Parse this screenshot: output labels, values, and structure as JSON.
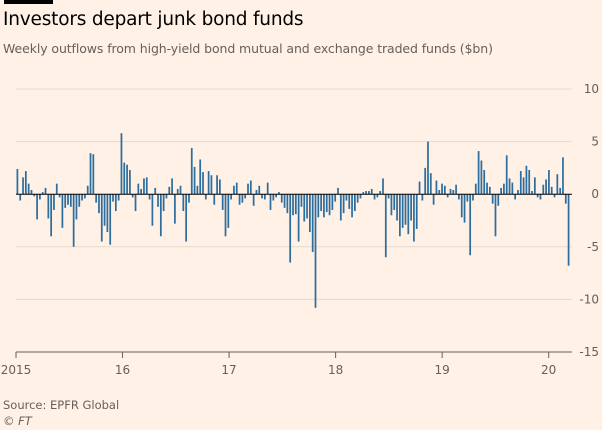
{
  "header": {
    "title": "Investors depart junk bond funds",
    "subtitle": "Weekly outflows from high-yield bond mutual and exchange traded funds ($bn)"
  },
  "footer": {
    "source": "Source: EPFR Global",
    "credit": "© FT"
  },
  "colors": {
    "background": "#fff1e5",
    "bar": "#2e6e9e",
    "grid": "#e6d9ce",
    "zero_line": "#000000",
    "text": "#66605c"
  },
  "chart_data": {
    "type": "bar",
    "title": "Investors depart junk bond funds",
    "subtitle": "Weekly outflows from high-yield bond mutual and exchange traded funds ($bn)",
    "xlabel": "",
    "ylabel": "",
    "ylim": [
      -15,
      10
    ],
    "yticks": [
      10,
      5,
      0,
      -5,
      -10,
      -15
    ],
    "xlim": [
      2015.0,
      2020.2
    ],
    "xticks": [
      {
        "value": 2015,
        "label": "2015"
      },
      {
        "value": 2016,
        "label": "16"
      },
      {
        "value": 2017,
        "label": "17"
      },
      {
        "value": 2018,
        "label": "18"
      },
      {
        "value": 2019,
        "label": "19"
      },
      {
        "value": 2020,
        "label": "20"
      }
    ],
    "grid": true,
    "y_axis_position": "right",
    "series": [
      {
        "values": [
          2.4,
          -0.6,
          1.6,
          2.2,
          1.0,
          0.4,
          -0.2,
          -2.4,
          -0.5,
          0.2,
          0.6,
          -2.3,
          -4.0,
          -1.5,
          1.0,
          -0.3,
          -3.2,
          -1.3,
          -1.0,
          -1.2,
          -5.0,
          -2.4,
          -1.2,
          -0.6,
          -0.4,
          0.8,
          3.9,
          3.8,
          -0.8,
          -1.8,
          -4.5,
          -3.0,
          -3.6,
          -4.8,
          -0.7,
          -1.6,
          -0.6,
          5.8,
          3.0,
          2.8,
          2.3,
          -0.3,
          -1.6,
          1.0,
          0.5,
          1.5,
          1.6,
          -0.5,
          -3.0,
          0.6,
          -1.2,
          -4.0,
          -1.6,
          -0.4,
          0.7,
          1.5,
          -2.8,
          0.5,
          0.8,
          -1.6,
          -4.5,
          -0.8,
          4.4,
          2.6,
          0.8,
          3.3,
          2.1,
          -0.5,
          2.2,
          1.8,
          -1.0,
          1.8,
          1.4,
          -1.5,
          -4.0,
          -3.2,
          -0.5,
          0.8,
          1.1,
          -1.0,
          -0.8,
          -0.4,
          1.0,
          1.3,
          -1.1,
          0.4,
          0.8,
          -0.4,
          -0.5,
          1.1,
          -1.5,
          -0.6,
          -0.3,
          0.2,
          -0.8,
          -1.3,
          -1.8,
          -6.5,
          -2.0,
          -1.9,
          -4.5,
          -1.2,
          -2.6,
          -2.3,
          -3.6,
          -5.5,
          -10.8,
          -2.2,
          -1.6,
          -2.2,
          -1.7,
          -2.0,
          -1.5,
          -0.7,
          0.6,
          -2.5,
          -1.8,
          -0.6,
          -1.4,
          -2.2,
          -1.6,
          -0.8,
          -0.4,
          0.2,
          0.3,
          0.3,
          0.5,
          -0.5,
          -0.3,
          0.3,
          1.5,
          -6.0,
          -0.4,
          -2.0,
          -1.5,
          -2.5,
          -4.0,
          -3.2,
          -2.9,
          -3.8,
          -2.5,
          -4.5,
          -3.3,
          1.2,
          -0.6,
          2.5,
          5.0,
          2.0,
          -1.0,
          1.3,
          0.4,
          1.0,
          0.8,
          -0.3,
          0.5,
          0.4,
          0.9,
          -0.5,
          -2.2,
          -2.7,
          -0.7,
          -5.8,
          -0.6,
          1.0,
          4.1,
          3.2,
          2.3,
          1.1,
          0.7,
          -0.9,
          -4.0,
          -1.1,
          0.6,
          1.0,
          3.7,
          1.5,
          1.1,
          -0.5,
          0.4,
          2.2,
          1.6,
          2.7,
          2.3,
          0.3,
          1.6,
          -0.3,
          -0.5,
          0.9,
          1.4,
          2.3,
          0.7,
          -0.3,
          1.9,
          0.6,
          3.5,
          -0.9,
          -6.8
        ]
      }
    ]
  }
}
